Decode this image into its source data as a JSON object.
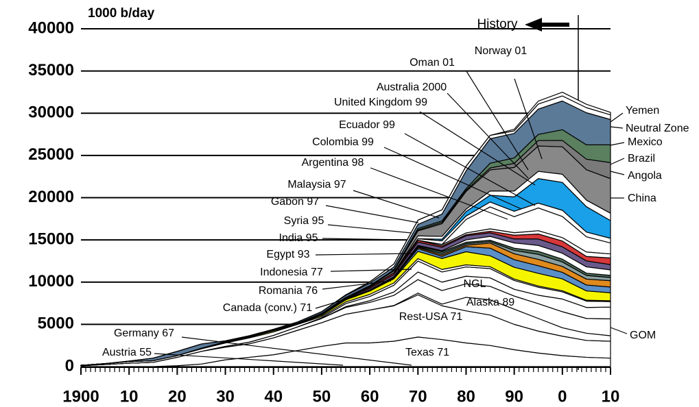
{
  "chart_data": {
    "type": "stacked-area",
    "y_label": "1000 b/day",
    "annotations": [
      "History",
      "Germany 67",
      "Austria 55"
    ],
    "x": [
      1900,
      1905,
      1910,
      1915,
      1920,
      1925,
      1930,
      1935,
      1940,
      1945,
      1950,
      1955,
      1960,
      1965,
      1970,
      1975,
      1980,
      1985,
      1990,
      1995,
      2000,
      2005,
      2010
    ],
    "xlim": [
      1900,
      2010
    ],
    "xticks": [
      1900,
      {
        "value": 1910,
        "label": "10"
      },
      {
        "value": 1920,
        "label": "20"
      },
      {
        "value": 1930,
        "label": "30"
      },
      {
        "value": 1940,
        "label": "40"
      },
      {
        "value": 1950,
        "label": "50"
      },
      {
        "value": 1960,
        "label": "60"
      },
      {
        "value": 1970,
        "label": "70"
      },
      {
        "value": 1980,
        "label": "80"
      },
      {
        "value": 1990,
        "label": "90"
      },
      {
        "value": 2000,
        "label": "0"
      },
      {
        "value": 2010,
        "label": "10"
      }
    ],
    "ylim": [
      0,
      40000
    ],
    "yticks": [
      0,
      5000,
      10000,
      15000,
      20000,
      25000,
      30000,
      35000,
      40000
    ],
    "grid": true,
    "series": [
      {
        "name": "Texas 71",
        "color": "#ffffff",
        "values": [
          0,
          0,
          0,
          0,
          100,
          300,
          800,
          1100,
          1400,
          1900,
          2400,
          2800,
          2800,
          3000,
          3500,
          3200,
          2800,
          2500,
          2000,
          1600,
          1300,
          1100,
          1000
        ]
      },
      {
        "name": "Rest-USA 71",
        "color": "#ffffff",
        "values": [
          100,
          250,
          400,
          500,
          1000,
          1500,
          1500,
          1600,
          2000,
          2400,
          2800,
          3400,
          3900,
          4200,
          5000,
          4000,
          3800,
          3600,
          3000,
          2600,
          2300,
          2000,
          2000
        ]
      },
      {
        "name": "Alaska 89",
        "color": "#ffffff",
        "values": [
          0,
          0,
          0,
          0,
          0,
          0,
          0,
          0,
          0,
          0,
          0,
          0,
          0,
          30,
          200,
          200,
          1600,
          1800,
          1800,
          1500,
          1000,
          850,
          650
        ]
      },
      {
        "name": "NGL",
        "color": "#ffffff",
        "values": [
          0,
          0,
          0,
          0,
          0,
          0,
          100,
          200,
          300,
          400,
          500,
          800,
          900,
          1200,
          1600,
          1600,
          1600,
          1600,
          1550,
          1750,
          1900,
          1750,
          2000
        ]
      },
      {
        "name": "GOM",
        "color": "#ffffff",
        "values": [
          0,
          0,
          0,
          0,
          0,
          0,
          0,
          0,
          0,
          0,
          0,
          100,
          200,
          400,
          900,
          1000,
          900,
          1000,
          800,
          1000,
          1500,
          1300,
          1400
        ]
      },
      {
        "name": "Canada (conv.) 71",
        "color": "#ffffff",
        "values": [
          0,
          0,
          0,
          0,
          0,
          0,
          0,
          0,
          0,
          0,
          80,
          350,
          500,
          800,
          1300,
          1200,
          1100,
          1100,
          1050,
          950,
          850,
          750,
          650
        ]
      },
      {
        "name": "Romania 76",
        "color": "#ffffff",
        "values": [
          50,
          100,
          200,
          200,
          200,
          300,
          400,
          500,
          400,
          300,
          150,
          200,
          250,
          270,
          290,
          300,
          250,
          220,
          160,
          140,
          130,
          110,
          90
        ]
      },
      {
        "name": "Indonesia 77",
        "color": "#f5f500",
        "values": [
          0,
          0,
          0,
          0,
          0,
          50,
          100,
          100,
          150,
          50,
          150,
          250,
          400,
          500,
          850,
          1300,
          1550,
          1300,
          1400,
          1500,
          1400,
          1100,
          950
        ]
      },
      {
        "name": "Egypt 93",
        "color": "#5b8fc7",
        "values": [
          0,
          0,
          0,
          0,
          0,
          0,
          0,
          0,
          0,
          0,
          50,
          50,
          50,
          120,
          330,
          250,
          600,
          900,
          900,
          900,
          780,
          700,
          680
        ]
      },
      {
        "name": "India 95",
        "color": "#e08a1e",
        "values": [
          0,
          0,
          0,
          0,
          0,
          0,
          0,
          0,
          0,
          0,
          0,
          0,
          50,
          80,
          140,
          170,
          180,
          600,
          700,
          750,
          700,
          700,
          750
        ]
      },
      {
        "name": "Syria 95",
        "color": "#8aa0a0",
        "values": [
          0,
          0,
          0,
          0,
          0,
          0,
          0,
          0,
          0,
          0,
          0,
          0,
          0,
          0,
          80,
          180,
          170,
          170,
          390,
          600,
          530,
          430,
          380
        ]
      },
      {
        "name": "Gabon 97",
        "color": "#4e6e5a",
        "values": [
          0,
          0,
          0,
          0,
          0,
          0,
          0,
          0,
          0,
          0,
          0,
          0,
          20,
          25,
          110,
          220,
          175,
          170,
          270,
          360,
          330,
          270,
          250
        ]
      },
      {
        "name": "Malaysia 97",
        "color": "#ffffff",
        "values": [
          0,
          0,
          0,
          0,
          0,
          0,
          0,
          0,
          0,
          0,
          0,
          0,
          0,
          0,
          50,
          100,
          280,
          450,
          620,
          700,
          700,
          750,
          650
        ]
      },
      {
        "name": "Argentina 98",
        "color": "#6a5a8a",
        "values": [
          0,
          0,
          0,
          0,
          0,
          0,
          0,
          0,
          0,
          0,
          70,
          90,
          180,
          270,
          390,
          400,
          490,
          440,
          480,
          760,
          760,
          700,
          630
        ]
      },
      {
        "name": "Colombia 99",
        "color": "#d8383a",
        "values": [
          0,
          0,
          0,
          0,
          0,
          20,
          50,
          50,
          70,
          100,
          100,
          100,
          150,
          200,
          220,
          160,
          130,
          180,
          440,
          590,
          690,
          530,
          780
        ]
      },
      {
        "name": "Ecuador 99",
        "color": "#ffffff",
        "values": [
          0,
          0,
          0,
          0,
          0,
          0,
          0,
          0,
          0,
          0,
          0,
          0,
          0,
          0,
          4,
          160,
          200,
          280,
          290,
          390,
          400,
          530,
          480
        ]
      },
      {
        "name": "United Kingdom 99",
        "color": "#ffffff",
        "values": [
          0,
          0,
          0,
          0,
          0,
          0,
          0,
          0,
          0,
          0,
          0,
          0,
          0,
          0,
          0,
          30,
          1600,
          2600,
          1900,
          2700,
          2500,
          1800,
          1300
        ]
      },
      {
        "name": "Australia 2000",
        "color": "#ffffff",
        "values": [
          0,
          0,
          0,
          0,
          0,
          0,
          0,
          0,
          0,
          0,
          0,
          0,
          0,
          10,
          180,
          420,
          400,
          580,
          640,
          570,
          740,
          560,
          550
        ]
      },
      {
        "name": "Norway 01",
        "color": "#1aa0e8",
        "values": [
          0,
          0,
          0,
          0,
          0,
          0,
          0,
          0,
          0,
          0,
          0,
          0,
          0,
          0,
          0,
          190,
          530,
          800,
          1700,
          2900,
          3300,
          3000,
          2100
        ]
      },
      {
        "name": "Oman 01",
        "color": "#ffffff",
        "values": [
          0,
          0,
          0,
          0,
          0,
          0,
          0,
          0,
          0,
          0,
          0,
          0,
          0,
          0,
          330,
          340,
          280,
          500,
          690,
          860,
          970,
          780,
          870
        ]
      },
      {
        "name": "China",
        "color": "#888888",
        "values": [
          0,
          0,
          0,
          0,
          0,
          0,
          0,
          0,
          0,
          0,
          0,
          50,
          100,
          230,
          600,
          1500,
          2100,
          2500,
          2800,
          3000,
          3250,
          3600,
          4100
        ]
      },
      {
        "name": "Angola",
        "color": "#7a7a7a",
        "values": [
          0,
          0,
          0,
          0,
          0,
          0,
          0,
          0,
          0,
          0,
          0,
          0,
          0,
          10,
          100,
          160,
          150,
          230,
          480,
          650,
          750,
          1250,
          1900
        ]
      },
      {
        "name": "Brazil",
        "color": "#5a8060",
        "values": [
          0,
          0,
          0,
          0,
          0,
          0,
          0,
          0,
          0,
          0,
          0,
          0,
          80,
          100,
          170,
          180,
          190,
          560,
          650,
          720,
          1270,
          1700,
          2100
        ]
      },
      {
        "name": "Mexico",
        "color": "#5b7a98",
        "values": [
          0,
          0,
          50,
          300,
          500,
          500,
          100,
          100,
          100,
          130,
          200,
          250,
          300,
          350,
          490,
          800,
          2100,
          2900,
          2900,
          3000,
          3400,
          3800,
          3000
        ]
      },
      {
        "name": "Neutral Zone",
        "color": "#ffffff",
        "values": [
          0,
          0,
          0,
          0,
          0,
          0,
          0,
          0,
          0,
          0,
          0,
          50,
          150,
          350,
          500,
          500,
          550,
          400,
          300,
          600,
          600,
          600,
          550
        ]
      },
      {
        "name": "Yemen",
        "color": "#ffffff",
        "values": [
          0,
          0,
          0,
          0,
          0,
          0,
          0,
          0,
          0,
          0,
          0,
          0,
          0,
          0,
          0,
          0,
          0,
          0,
          190,
          350,
          440,
          400,
          290
        ]
      }
    ]
  }
}
